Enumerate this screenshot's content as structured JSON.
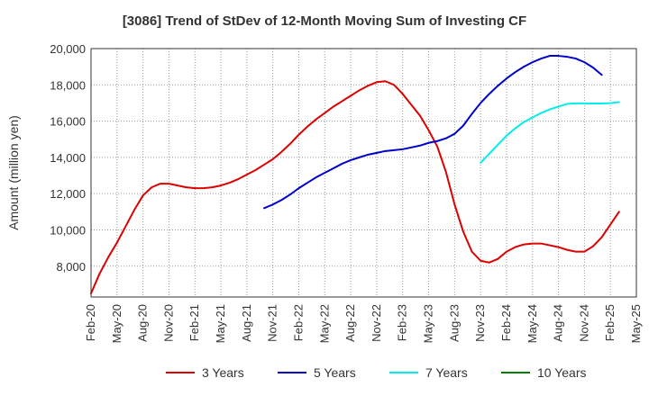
{
  "chart_data": {
    "type": "line",
    "title": "[3086]  Trend of StDev of 12-Month Moving Sum of Investing CF",
    "xlabel": "",
    "ylabel": "Amount (million yen)",
    "ylim": [
      6300,
      20000
    ],
    "yticks": [
      8000,
      10000,
      12000,
      14000,
      16000,
      18000,
      20000
    ],
    "ytick_labels": [
      "8,000",
      "10,000",
      "12,000",
      "14,000",
      "16,000",
      "18,000",
      "20,000"
    ],
    "x_categories": [
      "Feb-20",
      "Mar-20",
      "Apr-20",
      "May-20",
      "Jun-20",
      "Jul-20",
      "Aug-20",
      "Sep-20",
      "Oct-20",
      "Nov-20",
      "Dec-20",
      "Jan-21",
      "Feb-21",
      "Mar-21",
      "Apr-21",
      "May-21",
      "Jun-21",
      "Jul-21",
      "Aug-21",
      "Sep-21",
      "Oct-21",
      "Nov-21",
      "Dec-21",
      "Jan-22",
      "Feb-22",
      "Mar-22",
      "Apr-22",
      "May-22",
      "Jun-22",
      "Jul-22",
      "Aug-22",
      "Sep-22",
      "Oct-22",
      "Nov-22",
      "Dec-22",
      "Jan-23",
      "Feb-23",
      "Mar-23",
      "Apr-23",
      "May-23",
      "Jun-23",
      "Jul-23",
      "Aug-23",
      "Sep-23",
      "Oct-23",
      "Nov-23",
      "Dec-23",
      "Jan-24",
      "Feb-24",
      "Mar-24",
      "Apr-24",
      "May-24",
      "Jun-24",
      "Jul-24",
      "Aug-24",
      "Sep-24",
      "Oct-24",
      "Nov-24",
      "Dec-24",
      "Jan-25",
      "Feb-25",
      "Mar-25",
      "Apr-25",
      "May-25"
    ],
    "xtick_labels": [
      "Feb-20",
      "May-20",
      "Aug-20",
      "Nov-20",
      "Feb-21",
      "May-21",
      "Aug-21",
      "Nov-21",
      "Feb-22",
      "May-22",
      "Aug-22",
      "Nov-22",
      "Feb-23",
      "May-23",
      "Aug-23",
      "Nov-23",
      "Feb-24",
      "May-24",
      "Aug-24",
      "Nov-24",
      "Feb-25",
      "May-25"
    ],
    "grid": true,
    "legend_position": "bottom",
    "series": [
      {
        "name": "3 Years",
        "color": "#dd0000",
        "start_index": 0,
        "values": [
          6500,
          7600,
          8500,
          9300,
          10200,
          11100,
          11900,
          12350,
          12550,
          12550,
          12450,
          12350,
          12300,
          12300,
          12350,
          12450,
          12600,
          12800,
          13050,
          13300,
          13600,
          13900,
          14300,
          14750,
          15250,
          15700,
          16100,
          16450,
          16800,
          17100,
          17400,
          17700,
          17950,
          18150,
          18200,
          18000,
          17500,
          16900,
          16300,
          15500,
          14600,
          13200,
          11400,
          9900,
          8800,
          8300,
          8200,
          8400,
          8800,
          9050,
          9200,
          9250,
          9250,
          9150,
          9050,
          8900,
          8800,
          8800,
          9100,
          9600,
          10300,
          11000
        ]
      },
      {
        "name": "5 Years",
        "color": "#0000cc",
        "start_index": 20,
        "values": [
          11200,
          11400,
          11650,
          11950,
          12300,
          12600,
          12900,
          13150,
          13400,
          13650,
          13850,
          14000,
          14150,
          14250,
          14350,
          14400,
          14450,
          14550,
          14650,
          14800,
          14900,
          15050,
          15300,
          15750,
          16400,
          17000,
          17500,
          17950,
          18350,
          18700,
          19000,
          19250,
          19450,
          19600,
          19600,
          19550,
          19450,
          19250,
          18950,
          18550
        ]
      },
      {
        "name": "7 Years",
        "color": "#00eeee",
        "start_index": 45,
        "values": [
          13700,
          14200,
          14700,
          15200,
          15600,
          15950,
          16200,
          16450,
          16650,
          16800,
          16950,
          16980,
          16980,
          16970,
          16970,
          16990,
          17050
        ]
      },
      {
        "name": "10 Years",
        "color": "#008000",
        "start_index": 0,
        "values": []
      }
    ]
  }
}
